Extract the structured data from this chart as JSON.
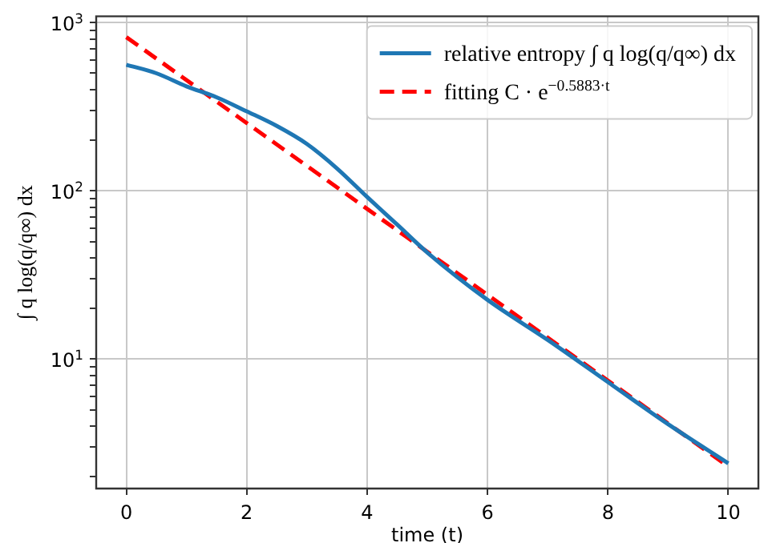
{
  "chart_data": {
    "type": "line",
    "xlabel": "time (t)",
    "ylabel": "∫ q log(q/q∞) dx",
    "log": "y",
    "grid": true,
    "legend": "top right",
    "line_style": "solid",
    "marker": "none",
    "xlim": [
      -0.5,
      10.5
    ],
    "xticks": [
      0,
      2,
      4,
      6,
      8,
      10
    ],
    "ylim": [
      1.7,
      1090
    ],
    "yticks": [
      {
        "value": 2,
        "label": null
      },
      {
        "value": 3,
        "label": null
      },
      {
        "value": 4,
        "label": null
      },
      {
        "value": 5,
        "label": null
      },
      {
        "value": 6,
        "label": null
      },
      {
        "value": 7,
        "label": null
      },
      {
        "value": 8,
        "label": null
      },
      {
        "value": 9,
        "label": null
      },
      {
        "value": 10,
        "label": "10$^{1}$"
      },
      {
        "value": 20,
        "label": null
      },
      {
        "value": 30,
        "label": null
      },
      {
        "value": 40,
        "label": null
      },
      {
        "value": 50,
        "label": null
      },
      {
        "value": 60,
        "label": null
      },
      {
        "value": 70,
        "label": null
      },
      {
        "value": 80,
        "label": null
      },
      {
        "value": 90,
        "label": null
      },
      {
        "value": 100,
        "label": "10$^{2}$"
      },
      {
        "value": 200,
        "label": null
      },
      {
        "value": 300,
        "label": null
      },
      {
        "value": 400,
        "label": null
      },
      {
        "value": 500,
        "label": null
      },
      {
        "value": 600,
        "label": null
      },
      {
        "value": 700,
        "label": null
      },
      {
        "value": 800,
        "label": null
      },
      {
        "value": 900,
        "label": null
      },
      {
        "value": 1000,
        "label": "10$^{3}$"
      }
    ],
    "series": [
      {
        "name": "relative entropy ∫ q log(q/q∞) dx",
        "color": "#1f77b4",
        "x": [
          0,
          0.5,
          1,
          1.5,
          2,
          2.5,
          3,
          3.5,
          4,
          4.5,
          5,
          6,
          7,
          8,
          9,
          10
        ],
        "values": [
          562,
          500,
          418,
          360,
          297,
          243,
          190,
          136,
          92,
          63,
          43,
          22.5,
          13,
          7.3,
          4.1,
          2.4
        ]
      },
      {
        "name": "fitting C · e$^{−0.5883·t}$",
        "color": "#ff0000",
        "line_style": "dashed",
        "x": [
          0,
          10
        ],
        "values": [
          820,
          2.3
        ]
      }
    ]
  }
}
